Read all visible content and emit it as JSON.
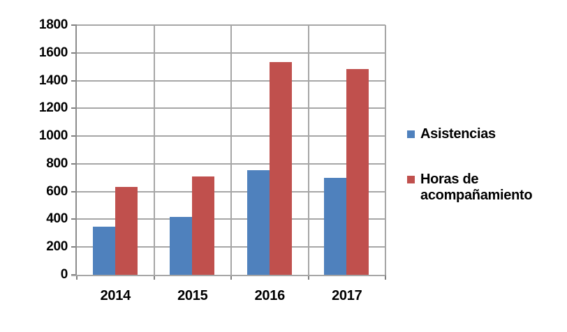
{
  "chart_data": {
    "type": "bar",
    "title": "",
    "categories": [
      "2014",
      "2015",
      "2016",
      "2017"
    ],
    "series": [
      {
        "name": "Asistencias",
        "color": "#4F81BD",
        "values": [
          345,
          420,
          755,
          700
        ]
      },
      {
        "name": "Horas de acompañamiento",
        "color": "#C0504D",
        "values": [
          635,
          710,
          1535,
          1485
        ]
      }
    ],
    "xlabel": "",
    "ylabel": "",
    "ylim": [
      0,
      1800
    ],
    "ytick_step": 200,
    "yticks": [
      "0",
      "200",
      "400",
      "600",
      "800",
      "1000",
      "1200",
      "1400",
      "1600",
      "1800"
    ],
    "grid": "horizontal gridlines every 200; vertical gridlines at category boundaries",
    "legend_position": "right",
    "colors": {
      "grid": "#A6A6A6",
      "axis": "#8C8C8C",
      "tick": "#7F7F7F",
      "text": "#000000",
      "background": "#FFFFFF"
    }
  }
}
